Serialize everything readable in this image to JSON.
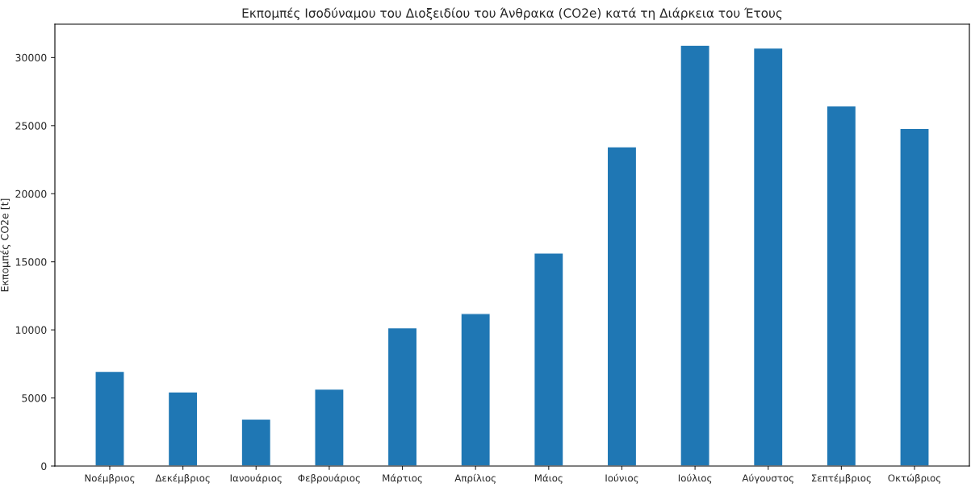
{
  "chart_data": {
    "type": "bar",
    "title": "Εκπομπές Ισοδύναμου του Διοξειδίου του Άνθρακα (CO2e) κατά τη Διάρκεια του Έτους",
    "ylabel": "Εκπομπές CO2e [t]",
    "categories": [
      "Νοέμβριος",
      "Δεκέμβριος",
      "Ιανουάριος",
      "Φεβρουάριος",
      "Μάρτιος",
      "Απρίλιος",
      "Μάιος",
      "Ιούνιος",
      "Ιούλιος",
      "Αύγουστος",
      "Σεπτέμβριος",
      "Οκτώβριος"
    ],
    "values": [
      6950,
      5450,
      3450,
      5650,
      10150,
      11200,
      15650,
      23450,
      30900,
      30700,
      26450,
      24800
    ],
    "color": "#1f77b4",
    "ylim": [
      0,
      32450
    ],
    "yticks": [
      0,
      5000,
      10000,
      15000,
      20000,
      25000,
      30000
    ],
    "grid": false,
    "legend": false
  }
}
